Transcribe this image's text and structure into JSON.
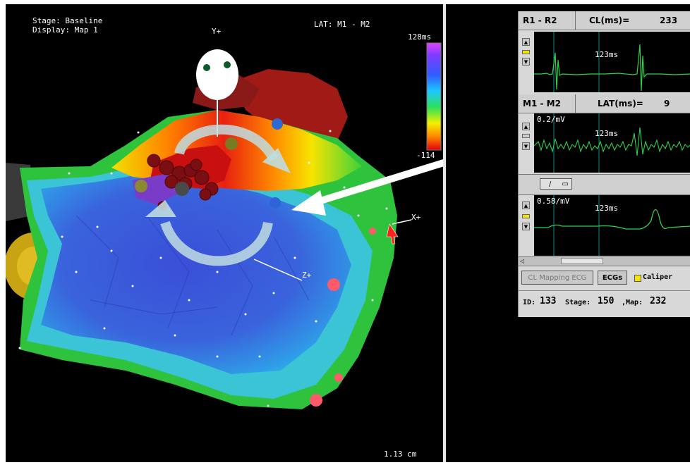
{
  "map_view": {
    "stage_label": "Stage: Baseline",
    "display_label": "Display: Map 1",
    "lat_label": "LAT: M1 - M2",
    "axis_y": "Y+",
    "axis_x": "X+",
    "axis_z": "Z+",
    "scale_label": "1.13 cm",
    "colorbar": {
      "max_label": "128ms",
      "min_label": "-114"
    }
  },
  "ecg_panel": {
    "channel1": {
      "name": "R1 - R2",
      "metric_label": "CL(ms)=",
      "metric_value": "233",
      "time_label": "123ms"
    },
    "channel2": {
      "name": "M1 - M2",
      "metric_label": "LAT(ms)=",
      "metric_value": "9",
      "gain": "0.2/mV",
      "time_label": "123ms"
    },
    "channel3": {
      "gain": "0.58/mV",
      "time_label": "123ms",
      "selector": "/"
    },
    "buttons": {
      "cl_mapping": "CL Mapping ECG",
      "ecgs": "ECGs",
      "caliper": "Caliper"
    },
    "footer": {
      "id_label": "ID:",
      "id_value": "133",
      "stage_label": "Stage:",
      "stage_value": "150",
      "map_label": ",Map:",
      "map_value": "232"
    }
  },
  "colors": {
    "background": "#000000",
    "trace": "#2fd24a",
    "panel": "#d8d8d8",
    "arrow": "#ffffff"
  }
}
